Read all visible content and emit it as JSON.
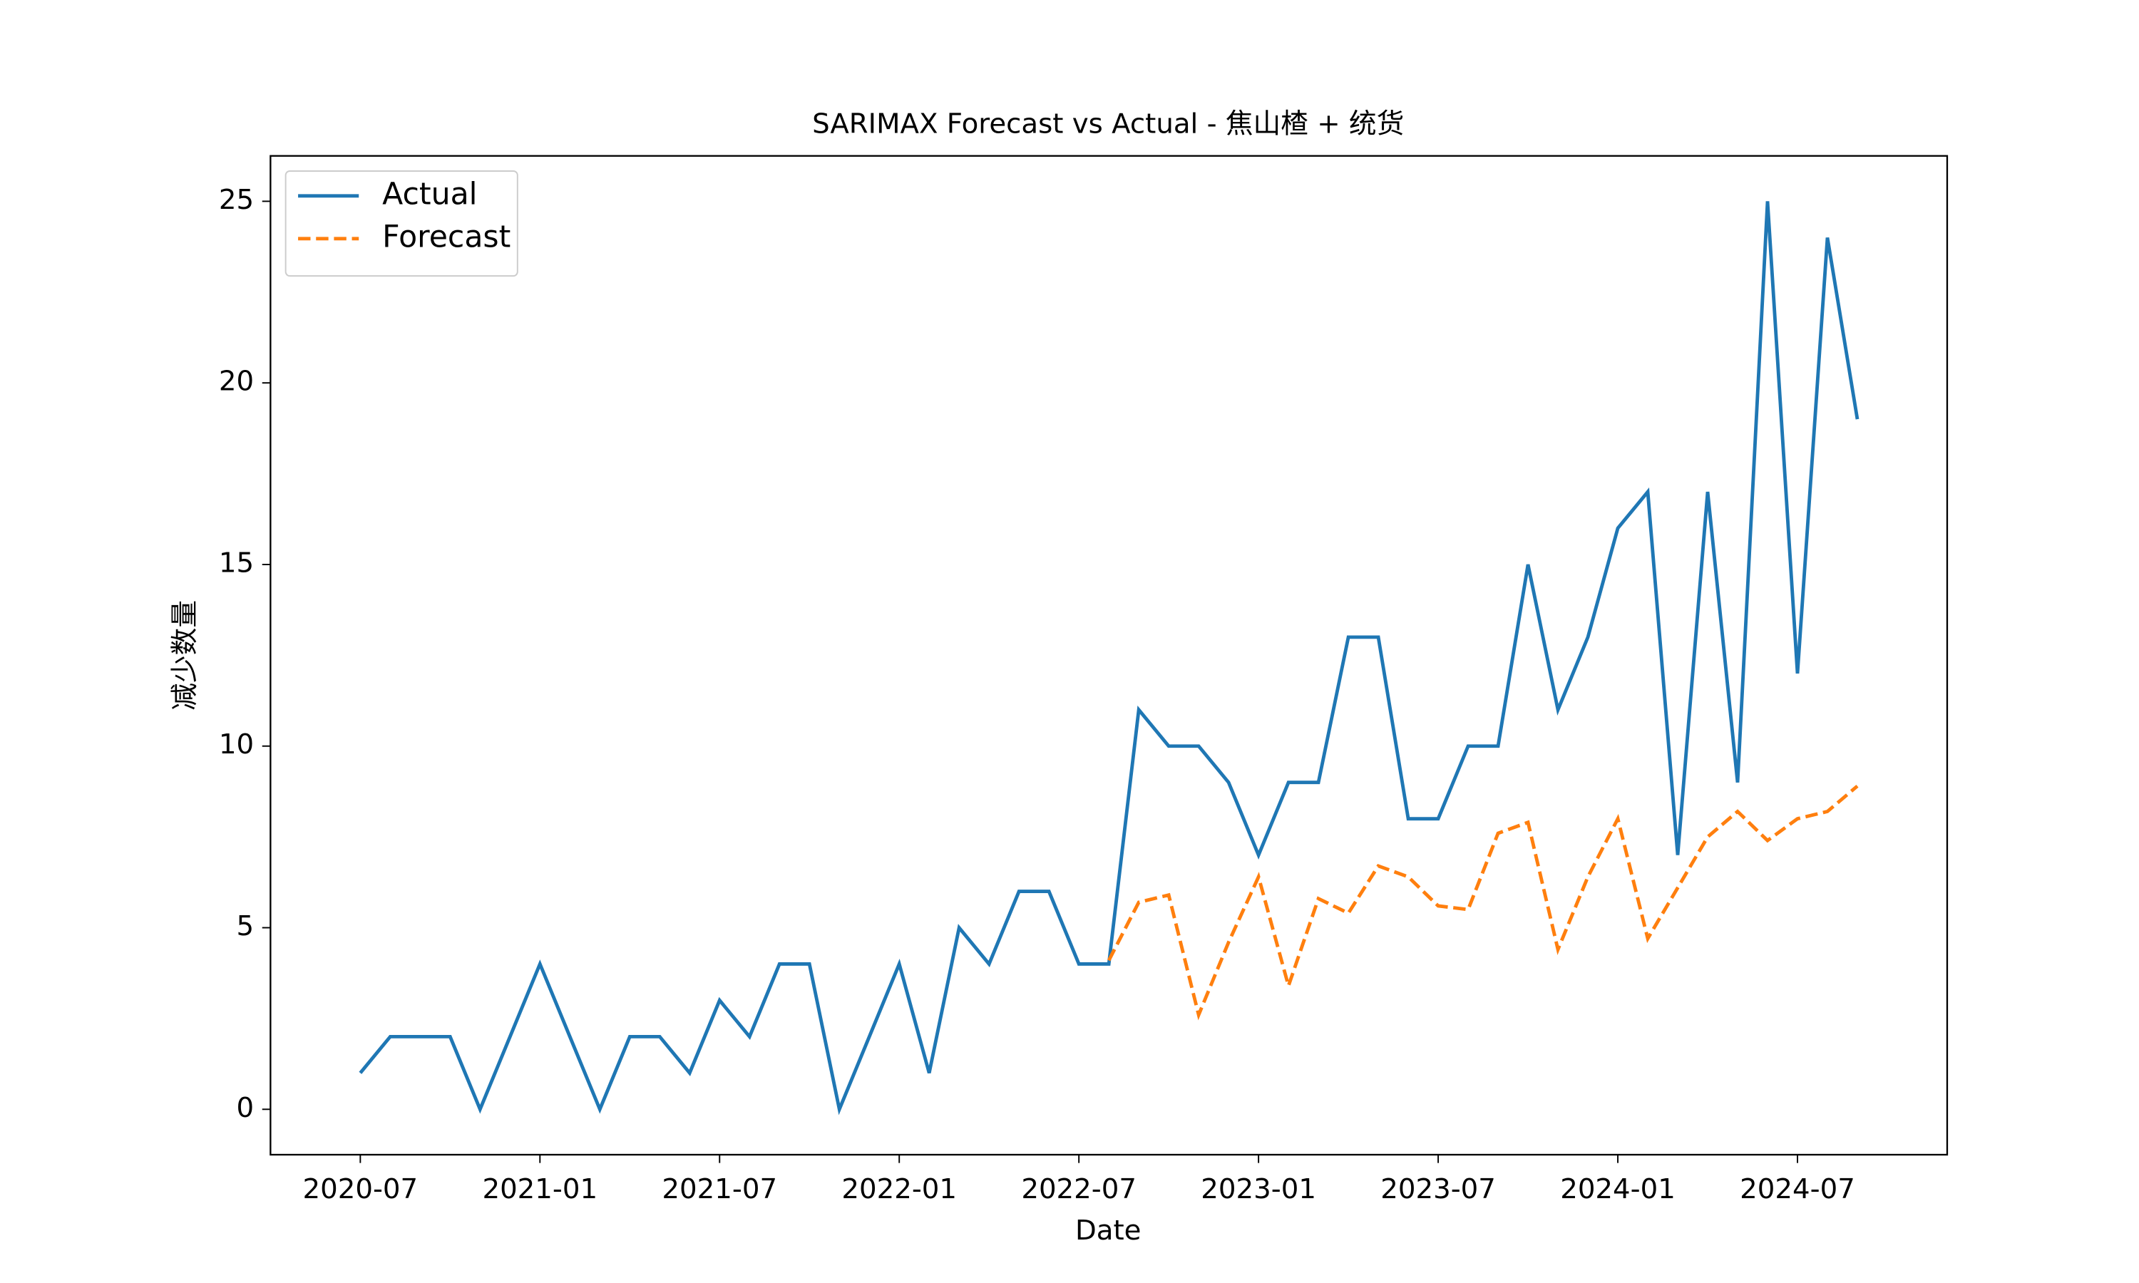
{
  "chart_data": {
    "type": "line",
    "title": "SARIMAX Forecast vs Actual - 焦山楂 + 统货",
    "x_label": "Date",
    "y_label": "减少数量",
    "x": [
      "2020-07",
      "2020-08",
      "2020-09",
      "2020-10",
      "2020-11",
      "2020-12",
      "2021-01",
      "2021-02",
      "2021-03",
      "2021-04",
      "2021-05",
      "2021-06",
      "2021-07",
      "2021-08",
      "2021-09",
      "2021-10",
      "2021-11",
      "2021-12",
      "2022-01",
      "2022-02",
      "2022-03",
      "2022-04",
      "2022-05",
      "2022-06",
      "2022-07",
      "2022-08",
      "2022-09",
      "2022-10",
      "2022-11",
      "2022-12",
      "2023-01",
      "2023-02",
      "2023-03",
      "2023-04",
      "2023-05",
      "2023-06",
      "2023-07",
      "2023-08",
      "2023-09",
      "2023-10",
      "2023-11",
      "2023-12",
      "2024-01",
      "2024-02",
      "2024-03",
      "2024-04",
      "2024-05",
      "2024-06",
      "2024-07",
      "2024-08",
      "2024-09"
    ],
    "series": [
      {
        "name": "Actual",
        "color": "#1f77b4",
        "dash": false,
        "values": [
          1,
          2,
          2,
          2,
          0,
          2,
          4,
          2,
          0,
          2,
          2,
          1,
          3,
          2,
          4,
          4,
          0,
          2,
          4,
          1,
          5,
          4,
          6,
          6,
          4,
          4,
          11,
          10,
          10,
          9,
          7,
          9,
          9,
          13,
          13,
          8,
          8,
          10,
          10,
          15,
          11,
          13,
          16,
          17,
          7,
          17,
          9,
          25,
          12,
          24,
          19
        ]
      },
      {
        "name": "Forecast",
        "color": "#ff7f0e",
        "dash": true,
        "values": [
          null,
          null,
          null,
          null,
          null,
          null,
          null,
          null,
          null,
          null,
          null,
          null,
          null,
          null,
          null,
          null,
          null,
          null,
          null,
          null,
          null,
          null,
          null,
          null,
          null,
          4.1,
          5.7,
          5.9,
          2.6,
          4.6,
          6.4,
          3.4,
          5.8,
          5.4,
          6.7,
          6.4,
          5.6,
          5.5,
          7.6,
          7.9,
          4.4,
          6.4,
          8.0,
          4.7,
          6.1,
          7.5,
          8.2,
          7.4,
          8.0,
          8.2,
          8.9
        ]
      }
    ],
    "xlim": [
      "2020-04",
      "2024-12"
    ],
    "xticks": [
      "2020-07",
      "2021-01",
      "2021-07",
      "2022-01",
      "2022-07",
      "2023-01",
      "2023-07",
      "2024-01",
      "2024-07"
    ],
    "ylim": [
      -1.25,
      26.25
    ],
    "yticks": [
      0,
      5,
      10,
      15,
      20,
      25
    ],
    "legend": "upper left"
  }
}
